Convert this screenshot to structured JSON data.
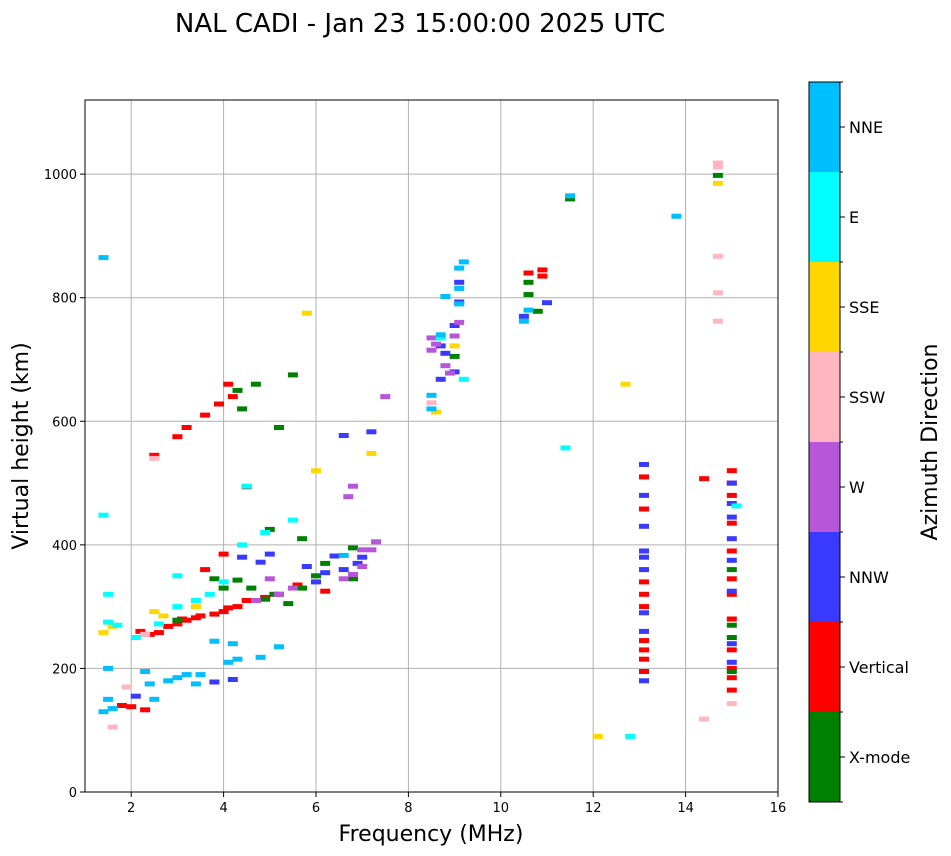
{
  "chart_data": {
    "type": "scatter",
    "title": "NAL CADI - Jan 23 15:00:00 2025 UTC",
    "xlabel": "Frequency (MHz)",
    "ylabel": "Virtual height (km)",
    "xlim": [
      1,
      16
    ],
    "ylim": [
      0,
      1120
    ],
    "grid": true,
    "xticks": [
      2,
      4,
      6,
      8,
      10,
      12,
      14,
      16
    ],
    "yticks": [
      0,
      200,
      400,
      600,
      800,
      1000
    ],
    "colorbar": {
      "label": "Azimuth Direction",
      "categories": [
        {
          "name": "X-mode",
          "color": "#008000"
        },
        {
          "name": "Vertical",
          "color": "#ff0000"
        },
        {
          "name": "NNW",
          "color": "#3a3aff"
        },
        {
          "name": "W",
          "color": "#b656d8"
        },
        {
          "name": "SSW",
          "color": "#ffb6c1"
        },
        {
          "name": "SSE",
          "color": "#ffd700"
        },
        {
          "name": "E",
          "color": "#00ffff"
        },
        {
          "name": "NNE",
          "color": "#00bfff"
        }
      ]
    },
    "series": [
      {
        "name": "Vertical",
        "points": [
          [
            1.8,
            140
          ],
          [
            2.0,
            138
          ],
          [
            2.3,
            133
          ],
          [
            2.2,
            260
          ],
          [
            2.4,
            255
          ],
          [
            2.6,
            258
          ],
          [
            2.8,
            268
          ],
          [
            3.0,
            272
          ],
          [
            3.1,
            280
          ],
          [
            3.2,
            278
          ],
          [
            3.4,
            282
          ],
          [
            3.5,
            285
          ],
          [
            3.8,
            288
          ],
          [
            4.0,
            292
          ],
          [
            4.1,
            298
          ],
          [
            4.3,
            300
          ],
          [
            4.5,
            310
          ],
          [
            4.9,
            315
          ],
          [
            5.2,
            320
          ],
          [
            5.6,
            335
          ],
          [
            6.2,
            325
          ],
          [
            2.5,
            545
          ],
          [
            3.0,
            575
          ],
          [
            3.2,
            590
          ],
          [
            3.6,
            610
          ],
          [
            3.9,
            628
          ],
          [
            4.1,
            660
          ],
          [
            4.2,
            640
          ],
          [
            4.5,
            494
          ],
          [
            4.0,
            385
          ],
          [
            3.6,
            360
          ],
          [
            13.1,
            195
          ],
          [
            13.1,
            215
          ],
          [
            13.1,
            230
          ],
          [
            13.1,
            245
          ],
          [
            13.1,
            300
          ],
          [
            13.1,
            320
          ],
          [
            13.1,
            340
          ],
          [
            13.1,
            458
          ],
          [
            13.1,
            510
          ],
          [
            15.0,
            165
          ],
          [
            15.0,
            185
          ],
          [
            15.0,
            200
          ],
          [
            15.0,
            230
          ],
          [
            15.0,
            280
          ],
          [
            15.0,
            320
          ],
          [
            15.0,
            345
          ],
          [
            15.0,
            390
          ],
          [
            15.0,
            435
          ],
          [
            15.0,
            480
          ],
          [
            15.0,
            500
          ],
          [
            15.0,
            520
          ],
          [
            14.4,
            507
          ],
          [
            10.9,
            835
          ],
          [
            10.9,
            845
          ],
          [
            10.6,
            840
          ]
        ]
      },
      {
        "name": "X-mode",
        "points": [
          [
            3.0,
            278
          ],
          [
            3.8,
            345
          ],
          [
            4.0,
            330
          ],
          [
            4.3,
            343
          ],
          [
            4.6,
            330
          ],
          [
            4.9,
            312
          ],
          [
            5.1,
            320
          ],
          [
            5.4,
            305
          ],
          [
            5.7,
            330
          ],
          [
            6.0,
            350
          ],
          [
            6.2,
            370
          ],
          [
            6.8,
            345
          ],
          [
            4.4,
            620
          ],
          [
            4.3,
            650
          ],
          [
            4.7,
            660
          ],
          [
            5.2,
            590
          ],
          [
            5.5,
            675
          ],
          [
            5.0,
            425
          ],
          [
            5.7,
            410
          ],
          [
            6.8,
            395
          ],
          [
            15.0,
            250
          ],
          [
            15.0,
            270
          ],
          [
            15.0,
            360
          ],
          [
            15.0,
            195
          ],
          [
            10.6,
            805
          ],
          [
            10.6,
            825
          ],
          [
            10.8,
            778
          ],
          [
            11.5,
            960
          ],
          [
            14.7,
            998
          ],
          [
            9.0,
            705
          ]
        ]
      },
      {
        "name": "NNW",
        "points": [
          [
            3.8,
            178
          ],
          [
            4.2,
            182
          ],
          [
            13.1,
            180
          ],
          [
            13.1,
            260
          ],
          [
            13.1,
            290
          ],
          [
            13.1,
            360
          ],
          [
            13.1,
            380
          ],
          [
            13.1,
            390
          ],
          [
            13.1,
            430
          ],
          [
            13.1,
            480
          ],
          [
            13.1,
            530
          ],
          [
            15.0,
            210
          ],
          [
            15.0,
            240
          ],
          [
            15.0,
            325
          ],
          [
            15.0,
            375
          ],
          [
            15.0,
            410
          ],
          [
            15.0,
            445
          ],
          [
            15.0,
            500
          ],
          [
            6.2,
            355
          ],
          [
            6.6,
            360
          ],
          [
            6.9,
            370
          ],
          [
            7.0,
            380
          ],
          [
            6.4,
            382
          ],
          [
            6.0,
            340
          ],
          [
            5.8,
            365
          ],
          [
            4.4,
            380
          ],
          [
            4.8,
            372
          ],
          [
            5.0,
            385
          ],
          [
            6.6,
            577
          ],
          [
            7.2,
            583
          ],
          [
            8.7,
            722
          ],
          [
            8.7,
            668
          ],
          [
            9.0,
            680
          ],
          [
            8.8,
            710
          ],
          [
            9.1,
            793
          ],
          [
            9.0,
            755
          ],
          [
            9.1,
            825
          ],
          [
            10.5,
            770
          ],
          [
            11.0,
            792
          ],
          [
            15.0,
            467
          ],
          [
            2.1,
            155
          ]
        ]
      },
      {
        "name": "W",
        "points": [
          [
            6.6,
            345
          ],
          [
            6.8,
            352
          ],
          [
            7.0,
            365
          ],
          [
            7.2,
            392
          ],
          [
            7.3,
            405
          ],
          [
            7.0,
            392
          ],
          [
            6.7,
            478
          ],
          [
            6.8,
            495
          ],
          [
            5.0,
            345
          ],
          [
            5.2,
            320
          ],
          [
            5.5,
            330
          ],
          [
            4.7,
            310
          ],
          [
            8.5,
            735
          ],
          [
            8.6,
            725
          ],
          [
            8.8,
            690
          ],
          [
            8.9,
            678
          ],
          [
            9.0,
            738
          ],
          [
            9.1,
            760
          ],
          [
            7.5,
            640
          ],
          [
            8.5,
            715
          ]
        ]
      },
      {
        "name": "SSW",
        "points": [
          [
            1.6,
            105
          ],
          [
            1.9,
            170
          ],
          [
            2.5,
            540
          ],
          [
            14.4,
            118
          ],
          [
            15.0,
            143
          ],
          [
            14.7,
            1012
          ],
          [
            14.7,
            1018
          ],
          [
            14.7,
            867
          ],
          [
            14.7,
            808
          ],
          [
            14.7,
            762
          ],
          [
            8.5,
            630
          ],
          [
            2.3,
            255
          ]
        ]
      },
      {
        "name": "SSE",
        "points": [
          [
            1.4,
            258
          ],
          [
            1.6,
            268
          ],
          [
            2.5,
            292
          ],
          [
            2.7,
            285
          ],
          [
            3.4,
            300
          ],
          [
            5.8,
            775
          ],
          [
            6.0,
            520
          ],
          [
            7.2,
            548
          ],
          [
            8.6,
            615
          ],
          [
            12.7,
            660
          ],
          [
            12.1,
            90
          ],
          [
            14.7,
            985
          ],
          [
            9.0,
            722
          ]
        ]
      },
      {
        "name": "E",
        "points": [
          [
            1.4,
            448
          ],
          [
            1.5,
            275
          ],
          [
            1.7,
            270
          ],
          [
            2.1,
            250
          ],
          [
            2.6,
            272
          ],
          [
            3.0,
            300
          ],
          [
            3.4,
            310
          ],
          [
            3.7,
            320
          ],
          [
            4.0,
            340
          ],
          [
            4.4,
            400
          ],
          [
            4.9,
            420
          ],
          [
            4.5,
            495
          ],
          [
            5.5,
            440
          ],
          [
            12.8,
            90
          ],
          [
            15.1,
            463
          ],
          [
            9.2,
            668
          ],
          [
            11.4,
            557
          ],
          [
            8.7,
            735
          ],
          [
            1.5,
            320
          ],
          [
            3.0,
            350
          ]
        ]
      },
      {
        "name": "NNE",
        "points": [
          [
            1.4,
            865
          ],
          [
            1.4,
            130
          ],
          [
            1.6,
            135
          ],
          [
            1.5,
            150
          ],
          [
            1.5,
            200
          ],
          [
            2.3,
            195
          ],
          [
            2.4,
            175
          ],
          [
            2.5,
            150
          ],
          [
            2.8,
            180
          ],
          [
            3.0,
            185
          ],
          [
            3.2,
            190
          ],
          [
            3.4,
            175
          ],
          [
            3.5,
            190
          ],
          [
            4.1,
            210
          ],
          [
            4.3,
            215
          ],
          [
            4.8,
            218
          ],
          [
            5.2,
            235
          ],
          [
            3.8,
            244
          ],
          [
            4.2,
            240
          ],
          [
            6.6,
            383
          ],
          [
            8.5,
            642
          ],
          [
            8.5,
            620
          ],
          [
            8.8,
            802
          ],
          [
            9.2,
            858
          ],
          [
            9.1,
            848
          ],
          [
            9.1,
            815
          ],
          [
            10.6,
            780
          ],
          [
            10.5,
            762
          ],
          [
            11.5,
            965
          ],
          [
            13.8,
            932
          ],
          [
            8.7,
            740
          ],
          [
            9.1,
            790
          ]
        ]
      }
    ]
  }
}
